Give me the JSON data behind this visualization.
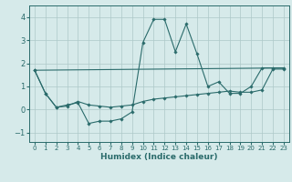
{
  "xlabel": "Humidex (Indice chaleur)",
  "ylabel": "",
  "xlim": [
    -0.5,
    23.5
  ],
  "ylim": [
    -1.4,
    4.5
  ],
  "yticks": [
    -1,
    0,
    1,
    2,
    3,
    4
  ],
  "xticks": [
    0,
    1,
    2,
    3,
    4,
    5,
    6,
    7,
    8,
    9,
    10,
    11,
    12,
    13,
    14,
    15,
    16,
    17,
    18,
    19,
    20,
    21,
    22,
    23
  ],
  "background_color": "#d6eaea",
  "grid_color": "#adc8c8",
  "line_color": "#2a6b6b",
  "lines": [
    {
      "x": [
        0,
        1,
        2,
        3,
        4,
        5,
        6,
        7,
        8,
        9,
        10,
        11,
        12,
        13,
        14,
        15,
        16,
        17,
        18,
        19,
        20,
        21,
        22,
        23
      ],
      "y": [
        1.7,
        0.7,
        0.1,
        0.2,
        0.3,
        -0.6,
        -0.5,
        -0.5,
        -0.4,
        -0.1,
        2.9,
        3.9,
        3.9,
        2.5,
        3.7,
        2.4,
        1.0,
        1.2,
        0.7,
        0.7,
        1.0,
        1.8,
        1.8,
        1.8
      ],
      "markers": true
    },
    {
      "x": [
        0,
        1,
        2,
        3,
        4,
        5,
        6,
        7,
        8,
        9,
        10,
        11,
        12,
        13,
        14,
        15,
        16,
        17,
        18,
        19,
        20,
        21,
        22,
        23
      ],
      "y": [
        1.7,
        0.7,
        0.1,
        0.15,
        0.35,
        0.2,
        0.15,
        0.1,
        0.15,
        0.2,
        0.35,
        0.45,
        0.5,
        0.55,
        0.6,
        0.65,
        0.7,
        0.75,
        0.8,
        0.75,
        0.75,
        0.85,
        1.75,
        1.75
      ],
      "markers": true
    },
    {
      "x": [
        0,
        23
      ],
      "y": [
        1.7,
        1.8
      ],
      "markers": false
    }
  ]
}
